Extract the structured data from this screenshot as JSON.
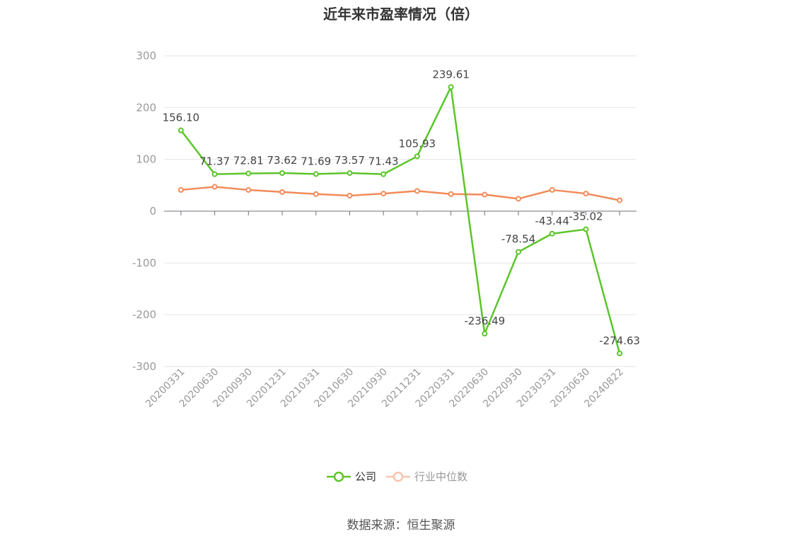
{
  "chart_data": {
    "type": "line",
    "title": "近年来市盈率情况（倍）",
    "categories": [
      "20200331",
      "20200630",
      "20200930",
      "20201231",
      "20210331",
      "20210630",
      "20210930",
      "20211231",
      "20220331",
      "20220630",
      "20220930",
      "20230331",
      "20230630",
      "20240822"
    ],
    "series": [
      {
        "name": "公司",
        "color": "#5cc52a",
        "values": [
          156.1,
          71.37,
          72.81,
          73.62,
          71.69,
          73.57,
          71.43,
          105.93,
          239.61,
          -236.49,
          -78.54,
          -43.44,
          -35.02,
          -274.63
        ],
        "labels": [
          "156.10",
          "71.37",
          "72.81",
          "73.62",
          "71.69",
          "73.57",
          "71.43",
          "105.93",
          "239.61",
          "-236.49",
          "-78.54",
          "-43.44",
          "-35.02",
          "-274.63"
        ]
      },
      {
        "name": "行业中位数",
        "color": "#f28b5a",
        "values": [
          41,
          47,
          41,
          37,
          33,
          30,
          34,
          39,
          33,
          32,
          24,
          41,
          34,
          21
        ]
      }
    ],
    "ylim": [
      -300,
      300
    ],
    "yticks": [
      300,
      200,
      100,
      0,
      -100,
      -200,
      -300
    ],
    "grid": true,
    "legend_position": "bottom"
  },
  "legend": {
    "company": "公司",
    "industry": "行业中位数"
  },
  "source": "数据来源：恒生聚源"
}
